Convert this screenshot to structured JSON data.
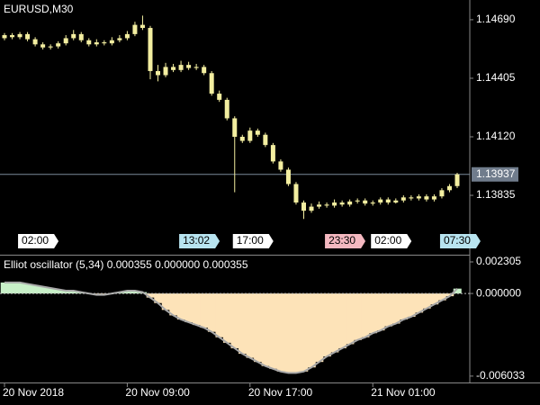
{
  "chart_data": [
    {
      "type": "candlestick",
      "title": "EURUSD,M30",
      "categories": [
        "20 Nov 2018",
        null,
        null,
        null,
        null,
        null,
        null,
        null,
        null,
        null,
        null,
        null,
        null,
        null,
        null,
        null,
        "20 Nov 09:00",
        null,
        null,
        null,
        null,
        null,
        null,
        null,
        null,
        null,
        null,
        null,
        null,
        null,
        null,
        null,
        "20 Nov 17:00",
        null,
        null,
        null,
        null,
        null,
        null,
        null,
        null,
        null,
        null,
        null,
        null,
        null,
        null,
        null,
        "21 Nov 01:00",
        null,
        null,
        null,
        null,
        null,
        null,
        null,
        null,
        null,
        null,
        null
      ],
      "open": [
        1.146,
        1.14615,
        1.14605,
        1.1462,
        1.14595,
        1.1457,
        1.14555,
        1.1456,
        1.14575,
        1.146,
        1.1462,
        1.1459,
        1.1457,
        1.1458,
        1.14575,
        1.1459,
        1.146,
        1.1462,
        1.14665,
        1.1465,
        1.1444,
        1.1442,
        1.1446,
        1.14445,
        1.1447,
        1.14455,
        1.1446,
        1.1443,
        1.1433,
        1.143,
        1.1421,
        1.1412,
        1.141,
        1.1415,
        1.1413,
        1.1408,
        1.14,
        1.1396,
        1.1389,
        1.138,
        1.1376,
        1.1378,
        1.1379,
        1.13785,
        1.138,
        1.1379,
        1.13805,
        1.1381,
        1.13795,
        1.138,
        1.13815,
        1.138,
        1.1381,
        1.13825,
        1.1382,
        1.1383,
        1.13815,
        1.1383,
        1.1386,
        1.1388
      ],
      "high": [
        1.14625,
        1.14625,
        1.1463,
        1.1463,
        1.14605,
        1.1458,
        1.1457,
        1.14585,
        1.14615,
        1.1464,
        1.1463,
        1.146,
        1.14595,
        1.1459,
        1.14605,
        1.14615,
        1.14635,
        1.1468,
        1.1471,
        1.1466,
        1.1447,
        1.1448,
        1.14475,
        1.1449,
        1.14485,
        1.14475,
        1.1447,
        1.1444,
        1.14345,
        1.1431,
        1.1422,
        1.1413,
        1.14165,
        1.1416,
        1.1414,
        1.1409,
        1.1401,
        1.1397,
        1.139,
        1.1381,
        1.13795,
        1.13805,
        1.138,
        1.13815,
        1.1381,
        1.13815,
        1.1382,
        1.1382,
        1.1381,
        1.13825,
        1.13825,
        1.1382,
        1.13835,
        1.13835,
        1.1384,
        1.1384,
        1.1384,
        1.1387,
        1.1389,
        1.13945
      ],
      "low": [
        1.1459,
        1.14595,
        1.14595,
        1.14585,
        1.1456,
        1.14545,
        1.14545,
        1.1455,
        1.14565,
        1.1459,
        1.1458,
        1.1456,
        1.1456,
        1.14565,
        1.14565,
        1.1458,
        1.1459,
        1.1461,
        1.1464,
        1.144,
        1.1439,
        1.1441,
        1.14435,
        1.14435,
        1.14445,
        1.14445,
        1.1442,
        1.1432,
        1.1429,
        1.142,
        1.1385,
        1.1409,
        1.1409,
        1.1412,
        1.1407,
        1.1399,
        1.1395,
        1.1388,
        1.1379,
        1.1372,
        1.1375,
        1.1377,
        1.13775,
        1.13775,
        1.1378,
        1.1378,
        1.13795,
        1.13785,
        1.13785,
        1.1379,
        1.1379,
        1.13795,
        1.138,
        1.1381,
        1.1381,
        1.13805,
        1.13805,
        1.1382,
        1.1385,
        1.1387
      ],
      "close": [
        1.14615,
        1.14605,
        1.1462,
        1.14595,
        1.1457,
        1.14555,
        1.1456,
        1.14575,
        1.146,
        1.1462,
        1.1459,
        1.1457,
        1.1458,
        1.14575,
        1.1459,
        1.146,
        1.1462,
        1.14665,
        1.1465,
        1.1444,
        1.1442,
        1.1446,
        1.14445,
        1.1447,
        1.14455,
        1.1446,
        1.1443,
        1.1433,
        1.143,
        1.1421,
        1.1412,
        1.141,
        1.1415,
        1.1413,
        1.1408,
        1.14,
        1.1396,
        1.1389,
        1.138,
        1.1376,
        1.1378,
        1.1379,
        1.13785,
        1.138,
        1.1379,
        1.13805,
        1.1381,
        1.13795,
        1.138,
        1.13815,
        1.138,
        1.1381,
        1.13825,
        1.1382,
        1.1383,
        1.13815,
        1.1383,
        1.1386,
        1.1388,
        1.13937
      ],
      "color": "#f3eea0",
      "ylim": [
        1.13546,
        1.14786
      ],
      "yticks": [
        1.13835,
        {
          "value": 1.1412,
          "label": "1.14120"
        },
        1.14405,
        {
          "value": 1.1469,
          "label": "1.14690"
        }
      ],
      "last_price": 1.13937,
      "time_markers": [
        {
          "label": "02:00",
          "index": 2,
          "color": "#ffffff"
        },
        {
          "label": "13:02",
          "index": 23,
          "color": "#b8e4f0"
        },
        {
          "label": "17:00",
          "index": 30,
          "color": "#ffffff"
        },
        {
          "label": "23:30",
          "index": 42,
          "color": "#f4b8c0"
        },
        {
          "label": "02:00",
          "index": 48,
          "color": "#ffffff"
        },
        {
          "label": "07:30",
          "index": 57,
          "color": "#b8e4f0"
        }
      ]
    },
    {
      "type": "oscillator",
      "title": "Elliot oscillator (5,34) 0.000355 0.000000 0.000355",
      "values": [
        0.0008,
        0.0008,
        0.0008,
        0.0007,
        0.0006,
        0.0005,
        0.0004,
        0.0003,
        0.0002,
        0.0002,
        0.0001,
        0.0,
        -0.0001,
        -0.0001,
        0.0,
        0.0001,
        0.0002,
        0.0002,
        0.0001,
        -0.0003,
        -0.0007,
        -0.0012,
        -0.0016,
        -0.0019,
        -0.0021,
        -0.0023,
        -0.0025,
        -0.0028,
        -0.0032,
        -0.0036,
        -0.004,
        -0.0044,
        -0.0047,
        -0.005,
        -0.0053,
        -0.0055,
        -0.0057,
        -0.0058,
        -0.0058,
        -0.0057,
        -0.0054,
        -0.005,
        -0.0046,
        -0.0043,
        -0.004,
        -0.0037,
        -0.0034,
        -0.0032,
        -0.0029,
        -0.0027,
        -0.0024,
        -0.0022,
        -0.0019,
        -0.0017,
        -0.0014,
        -0.0011,
        -0.0008,
        -0.0005,
        -0.0002,
        0.000355
      ],
      "positive_color": "#c8f0c8",
      "negative_color": "#fde3b8",
      "line_color": "#a8a8a8",
      "ylim": [
        -0.0065,
        0.0027
      ],
      "yticks": [
        -0.006033,
        {
          "value": 0,
          "label": "0.000000"
        },
        0.002305
      ]
    }
  ]
}
